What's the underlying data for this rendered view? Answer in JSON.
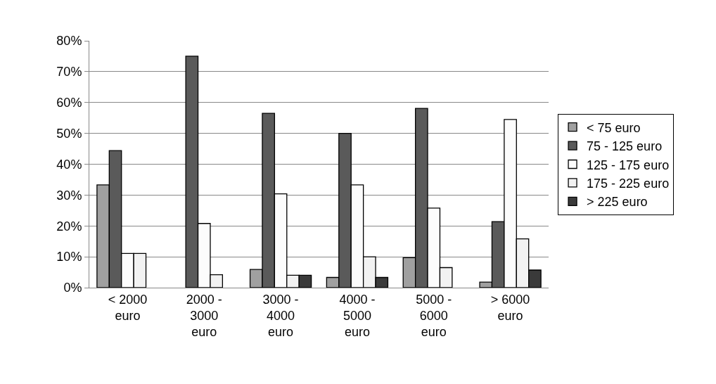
{
  "chart_data": {
    "type": "bar",
    "categories": [
      "< 2000 euro",
      "2000 - 3000 euro",
      "3000 - 4000 euro",
      "4000 - 5000 euro",
      "5000 - 6000 euro",
      "> 6000 euro"
    ],
    "series": [
      {
        "name": "< 75 euro",
        "color": "#a0a0a0",
        "values": [
          33.3,
          null,
          5.9,
          3.3,
          9.7,
          1.8
        ]
      },
      {
        "name": "75 - 125 euro",
        "color": "#5a5a5a",
        "values": [
          44.4,
          75,
          56.5,
          50,
          58.1,
          21.4
        ]
      },
      {
        "name": "125 - 175 euro",
        "color": "#fcfcfc",
        "values": [
          11.1,
          20.8,
          30.4,
          33.3,
          25.8,
          54.5
        ]
      },
      {
        "name": "175 - 225 euro",
        "color": "#f2f2f2",
        "values": [
          11.1,
          4.2,
          4.0,
          10,
          6.5,
          15.8
        ]
      },
      {
        "name": "> 225 euro",
        "color": "#3a3a3a",
        "values": [
          null,
          null,
          4.0,
          3.3,
          null,
          5.7
        ]
      }
    ],
    "ylim": [
      0,
      80
    ],
    "yticks": [
      {
        "value": 0,
        "label": "0%"
      },
      {
        "value": 10,
        "label": "10%"
      },
      {
        "value": 20,
        "label": "20%"
      },
      {
        "value": 30,
        "label": "30%"
      },
      {
        "value": 40,
        "label": "40%"
      },
      {
        "value": 50,
        "label": "50%"
      },
      {
        "value": 60,
        "label": "60%"
      },
      {
        "value": 70,
        "label": "70%"
      },
      {
        "value": 80,
        "label": "80%"
      }
    ],
    "grid": "y",
    "legend": "right"
  }
}
